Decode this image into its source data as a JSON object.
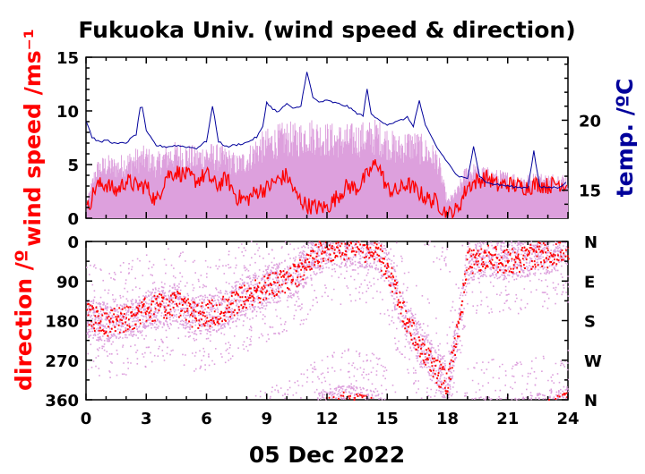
{
  "chart_data": [
    {
      "type": "line",
      "title": "Fukuoka Univ. (wind speed & direction)",
      "ylabel": "wind speed /ms⁻¹",
      "y2label": "temp. /ºC",
      "xlim": [
        0,
        24
      ],
      "ylim": [
        0,
        15
      ],
      "y2lim": [
        13,
        24.5
      ],
      "yticks": [
        0,
        5,
        10,
        15
      ],
      "y2ticks": [
        15,
        20
      ],
      "colors": {
        "wind_mean": "#ff0000",
        "wind_gust": "#dda0dd",
        "temperature": "#00009b"
      },
      "series": [
        {
          "x": [
            0,
            0.5,
            1,
            1.5,
            2,
            2.5,
            3,
            3.5,
            4,
            4.5,
            5,
            5.5,
            6,
            6.5,
            7,
            7.5,
            8,
            8.5,
            9,
            9.5,
            10,
            10.5,
            11,
            11.5,
            12,
            12.5,
            13,
            13.5,
            14,
            14.5,
            15,
            15.5,
            16,
            16.5,
            17,
            17.5,
            18,
            18.5,
            19,
            19.5,
            20,
            20.5,
            21,
            21.5,
            22,
            22.5,
            23,
            23.5,
            24
          ],
          "values": [
            0.5,
            3,
            3.2,
            2.5,
            3.5,
            3,
            3,
            1.5,
            4,
            4.3,
            4,
            3.5,
            4.1,
            3,
            3.7,
            2,
            1.7,
            2.5,
            2.8,
            3.5,
            4,
            2,
            1.2,
            1,
            1,
            2,
            3,
            2.8,
            4,
            5.3,
            2.7,
            2.5,
            3.2,
            2.5,
            1.8,
            1.5,
            0.3,
            0.8,
            3,
            3.5,
            3.8,
            3,
            3.2,
            3,
            2.9,
            3.2,
            3,
            3.3,
            3.1
          ]
        },
        {
          "x": [
            0,
            0.5,
            1,
            1.5,
            2,
            2.5,
            3,
            3.5,
            4,
            4.5,
            5,
            5.5,
            6,
            6.5,
            7,
            7.5,
            8,
            8.5,
            9,
            9.5,
            10,
            10.5,
            11,
            11.5,
            12,
            12.5,
            13,
            13.5,
            14,
            14.5,
            15,
            15.5,
            16,
            16.5,
            17,
            17.5,
            18,
            18.5,
            19,
            19.5,
            20,
            20.5,
            21,
            21.5,
            22,
            22.5,
            23,
            23.5,
            24
          ],
          "values": [
            1,
            4.5,
            5,
            4.8,
            5.2,
            5.5,
            5.7,
            5,
            5.8,
            6,
            5.9,
            5.6,
            6,
            5.8,
            5.6,
            5,
            5.5,
            6.5,
            7,
            7.3,
            7.6,
            7.4,
            7.9,
            7.8,
            7.5,
            7.4,
            7.4,
            7.5,
            7.6,
            7.8,
            7.2,
            6.5,
            7,
            6.8,
            6.2,
            5.5,
            1.5,
            2.5,
            4.5,
            4.2,
            4,
            3.8,
            3.7,
            3.6,
            3.5,
            3.6,
            3.5,
            3.6,
            3.5
          ]
        },
        {
          "x": [
            0,
            0.3,
            0.7,
            1,
            1.5,
            2,
            2.5,
            2.75,
            3,
            3.5,
            4,
            4.5,
            5,
            5.5,
            6,
            6.3,
            6.6,
            7,
            8,
            8.5,
            8.8,
            9,
            9.3,
            9.6,
            10,
            10.3,
            10.7,
            11,
            11.3,
            11.6,
            12,
            12.5,
            13,
            13.5,
            13.8,
            14,
            14.2,
            14.5,
            15,
            15.5,
            16,
            16.3,
            16.6,
            16.9,
            17.2,
            17.5,
            18,
            18.5,
            19,
            19.3,
            19.6,
            20,
            20.5,
            21,
            21.5,
            22,
            22.3,
            22.6,
            23,
            23.5,
            24
          ],
          "values": [
            20,
            18.8,
            18.4,
            18.6,
            18.3,
            18.4,
            19,
            21.4,
            19.2,
            18.2,
            18.1,
            18.2,
            18.1,
            18,
            18.5,
            21,
            18.5,
            18.1,
            18.4,
            18.8,
            19.5,
            21.3,
            20.8,
            20.6,
            21.2,
            20.8,
            21,
            23.5,
            21.6,
            21.3,
            21.4,
            21.2,
            21,
            20.5,
            20.3,
            22.3,
            20.4,
            20.1,
            19.7,
            19.9,
            20.2,
            19.6,
            21.4,
            19.6,
            18.8,
            18,
            17,
            16,
            15.8,
            18.2,
            16,
            15.5,
            15.4,
            15.3,
            15.2,
            15.2,
            17.8,
            15.2,
            15.2,
            15.2,
            15.6
          ]
        }
      ]
    },
    {
      "type": "scatter",
      "ylabel": "direction /º",
      "xlabel": "05 Dec 2022",
      "xlim": [
        0,
        24
      ],
      "ylim": [
        360,
        0
      ],
      "xticks": [
        "0",
        "3",
        "6",
        "9",
        "12",
        "15",
        "18",
        "21",
        "24"
      ],
      "yticks": [
        0,
        90,
        180,
        270,
        360
      ],
      "y2ticks": [
        "N",
        "E",
        "S",
        "W",
        "N"
      ],
      "colors": {
        "direction_mean": "#ff0000",
        "direction_samples": "#dda0dd"
      },
      "series": [
        {
          "x": [
            0,
            0.5,
            1,
            1.5,
            2,
            2.5,
            3,
            3.5,
            4,
            4.5,
            5,
            5.5,
            6,
            6.5,
            7,
            7.5,
            8,
            8.5,
            9,
            9.5,
            10,
            10.5,
            11,
            11.5,
            12,
            12.5,
            13,
            13.5,
            14,
            14.5,
            15,
            15.5,
            16,
            16.5,
            17,
            17.5,
            18,
            18.5,
            19,
            19.5,
            20,
            20.5,
            21,
            21.5,
            22,
            22.5,
            23,
            23.5,
            24
          ],
          "values": [
            170,
            180,
            185,
            180,
            175,
            170,
            155,
            150,
            145,
            140,
            160,
            170,
            165,
            160,
            150,
            135,
            125,
            115,
            100,
            95,
            85,
            75,
            50,
            30,
            20,
            15,
            10,
            15,
            20,
            30,
            60,
            130,
            190,
            230,
            260,
            300,
            320,
            200,
            45,
            40,
            35,
            40,
            45,
            40,
            35,
            30,
            30,
            20,
            10
          ]
        }
      ]
    }
  ]
}
